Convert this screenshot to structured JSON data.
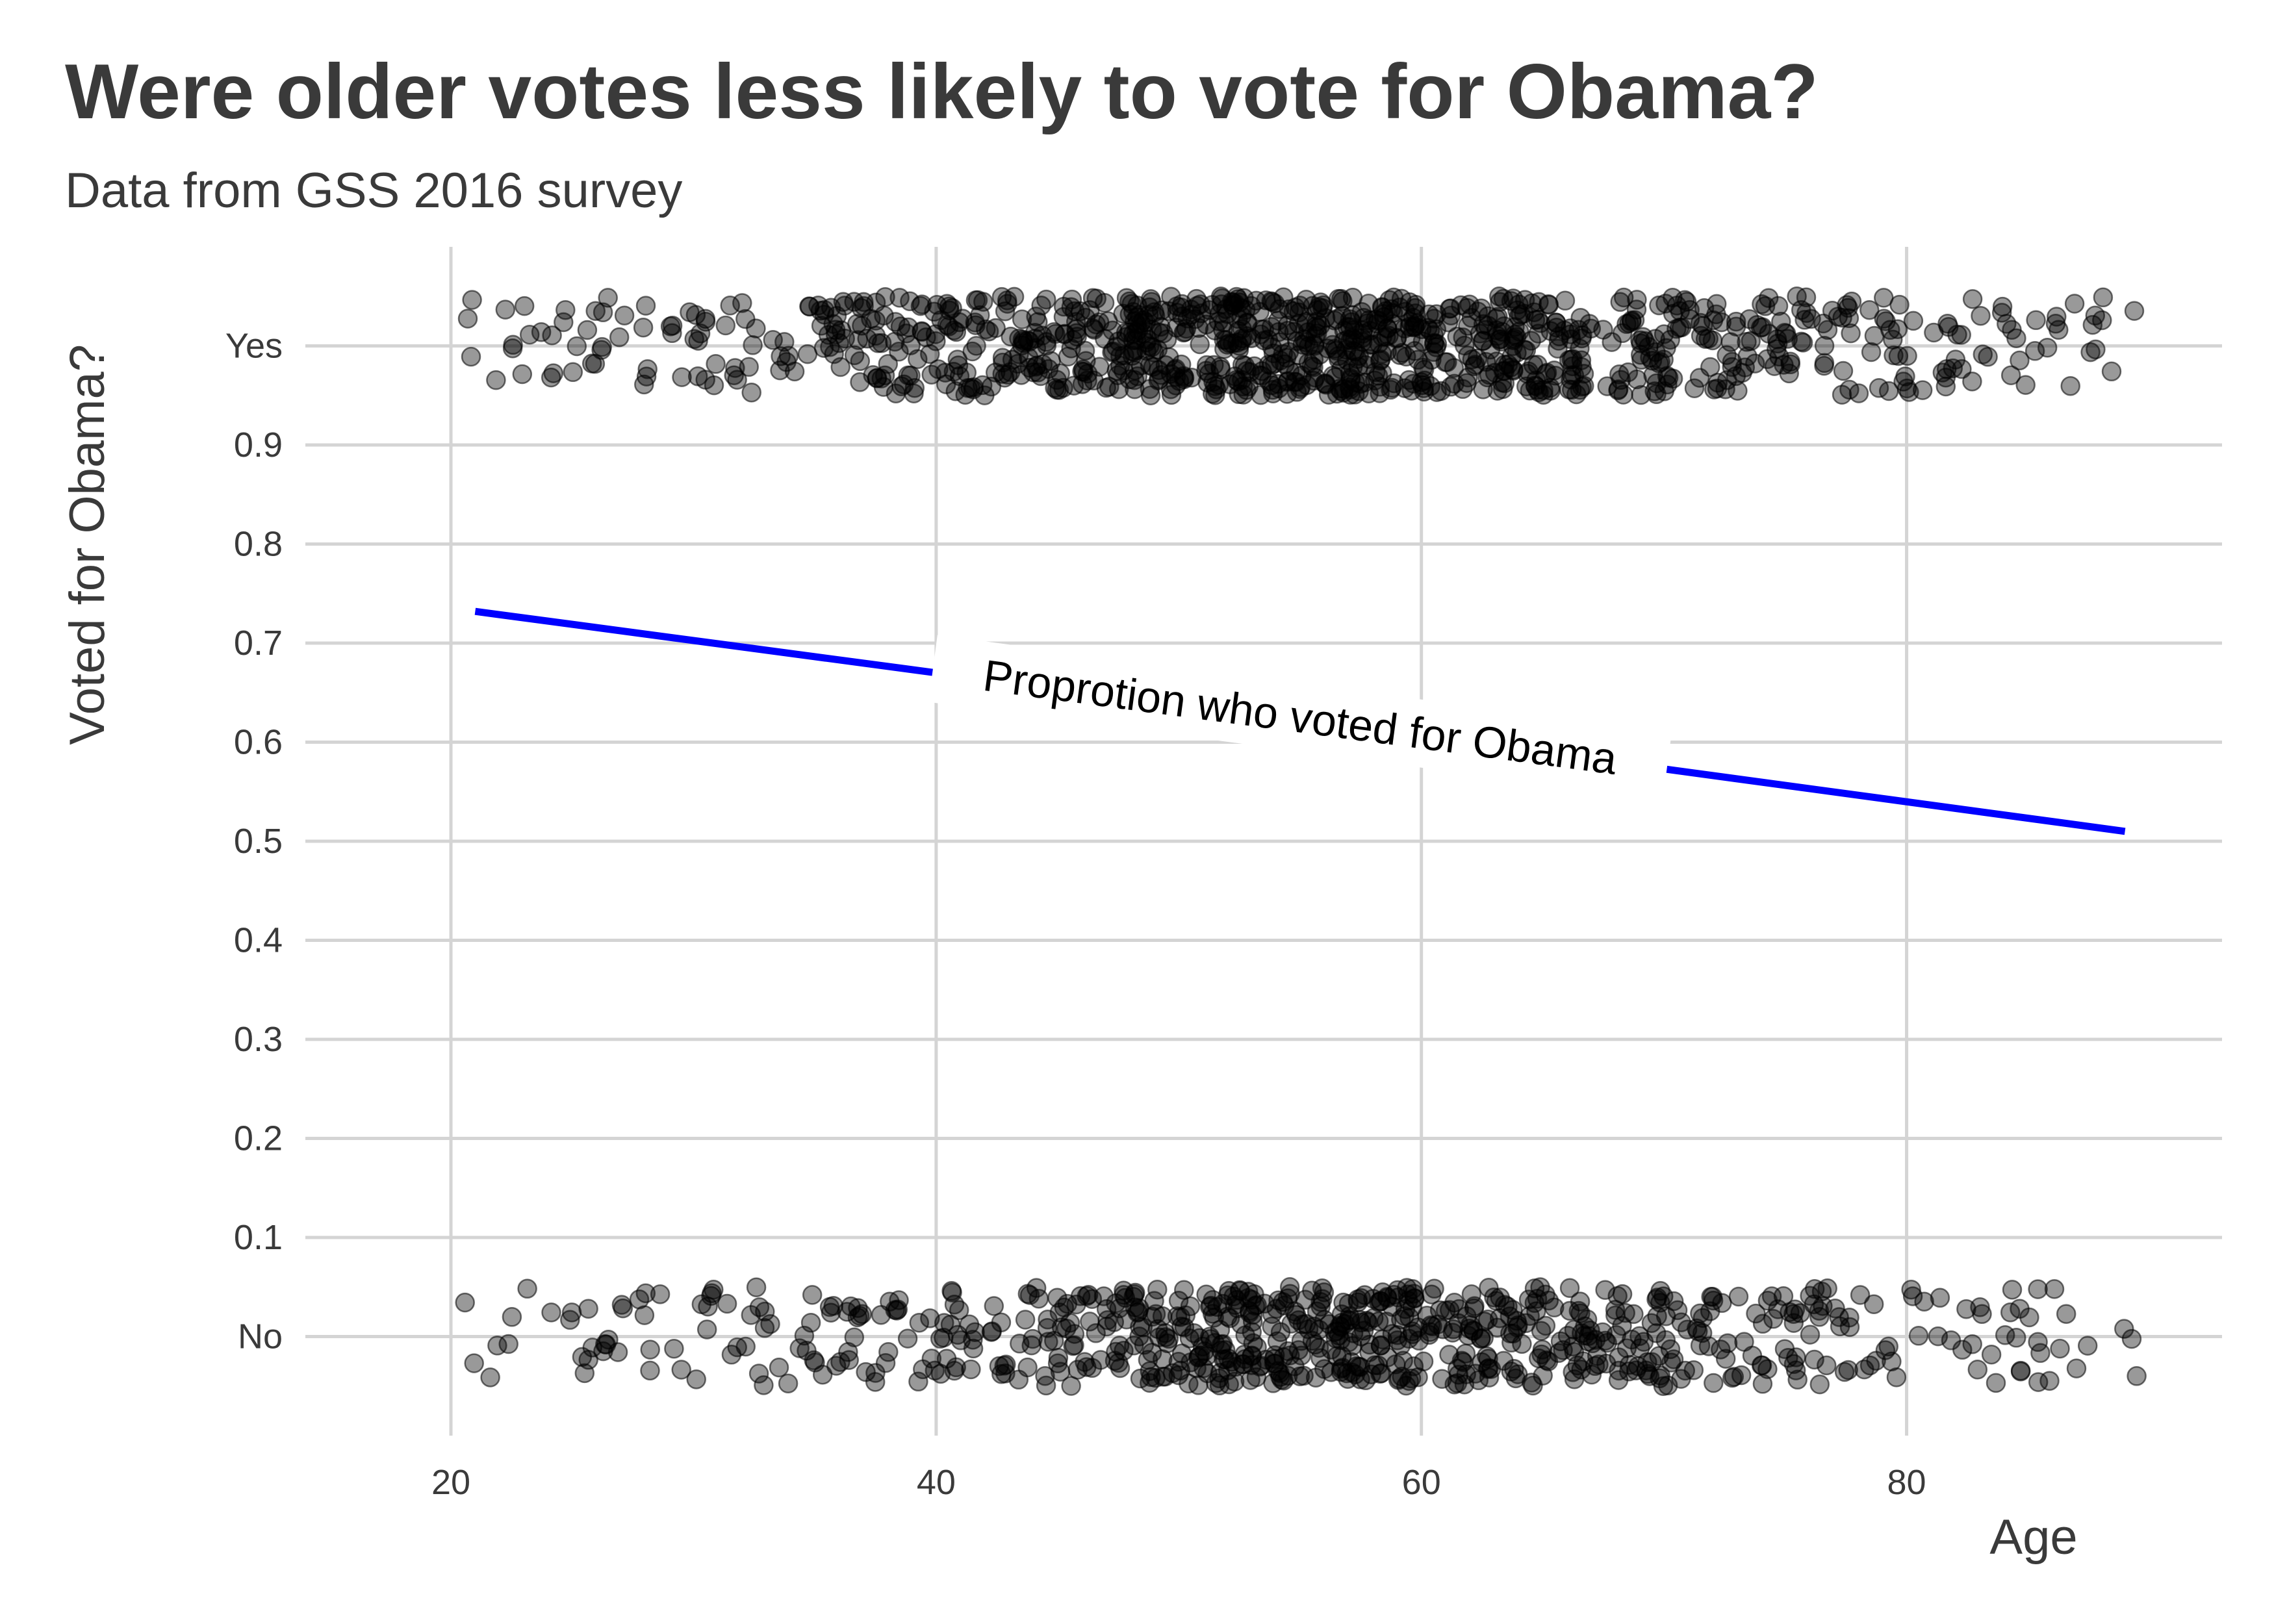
{
  "chart_data": {
    "type": "scatter",
    "title": "Were older votes less likely to vote for Obama?",
    "subtitle": "Data from GSS 2016 survey",
    "xlabel": "Age",
    "ylabel": "Voted for Obama?",
    "xlim": [
      14,
      93
    ],
    "ylim": [
      -0.1,
      1.1
    ],
    "x_ticks": [
      20,
      40,
      60,
      80
    ],
    "x_tick_labels": [
      "20",
      "40",
      "60",
      "80"
    ],
    "y_ticks": [
      0,
      0.1,
      0.2,
      0.3,
      0.4,
      0.5,
      0.6,
      0.7,
      0.8,
      0.9,
      1
    ],
    "y_tick_labels": [
      "No",
      "0.1",
      "0.2",
      "0.3",
      "0.4",
      "0.5",
      "0.6",
      "0.7",
      "0.8",
      "0.9",
      "Yes"
    ],
    "grid": true,
    "jitter": {
      "width": 0.5,
      "height": 0.05
    },
    "series": [
      {
        "type": "scatter",
        "color": "#000000",
        "alpha": 0.4,
        "groups": [
          {
            "y": 1,
            "n": 1050,
            "x_min": 21,
            "x_max": 89,
            "mode_age": 57
          },
          {
            "y": 0,
            "n": 750,
            "x_min": 21,
            "x_max": 89,
            "mode_age": 58
          }
        ]
      },
      {
        "type": "line",
        "color": "#0000ff",
        "points": [
          [
            21,
            0.732
          ],
          [
            40,
            0.67
          ],
          [
            60,
            0.605
          ],
          [
            70,
            0.573
          ],
          [
            89,
            0.51
          ]
        ]
      }
    ],
    "annotations": [
      {
        "text": "Proprotion who voted for Obama",
        "x": 55,
        "y": 0.625
      }
    ]
  }
}
